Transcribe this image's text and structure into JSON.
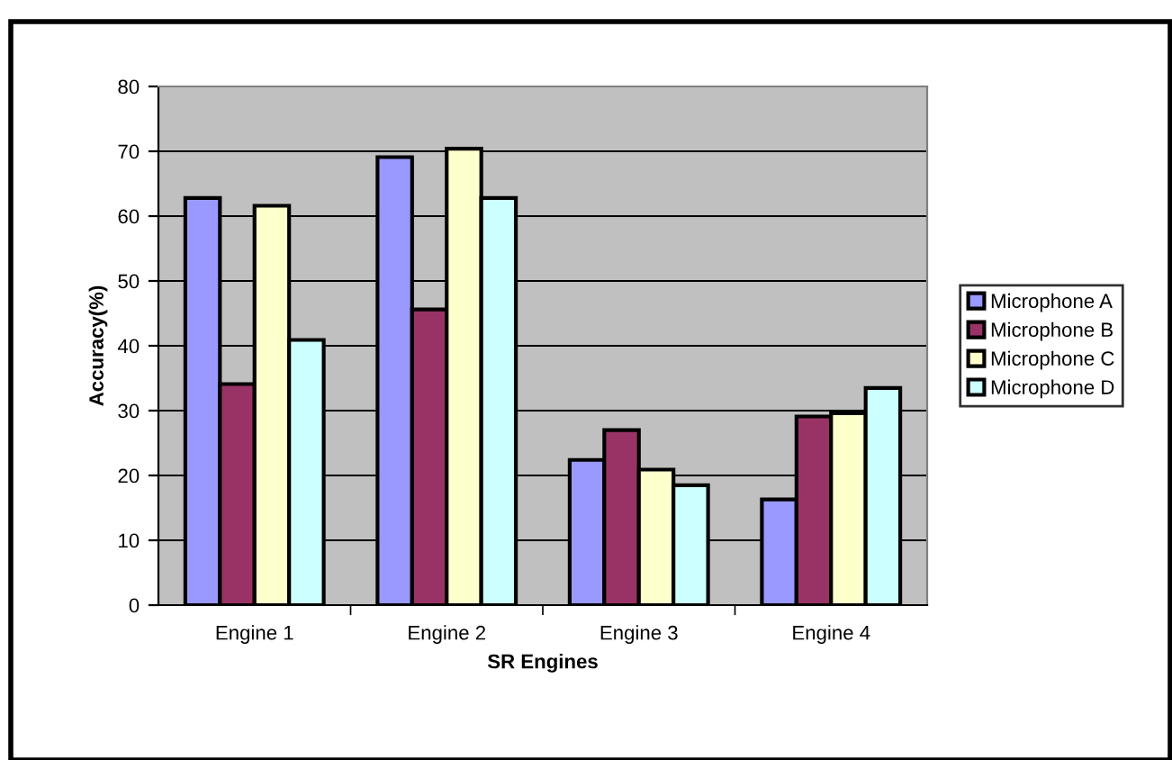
{
  "chart_data": {
    "type": "bar",
    "xlabel": "SR Engines",
    "ylabel": "Accuracy(%)",
    "categories": [
      "Engine 1",
      "Engine 2",
      "Engine 3",
      "Engine 4"
    ],
    "series": [
      {
        "name": "Microphone A",
        "color": "#9999ff",
        "values": [
          62.8,
          69.1,
          22.4,
          16.3
        ]
      },
      {
        "name": "Microphone B",
        "color": "#993366",
        "values": [
          34.1,
          45.6,
          27.0,
          29.1
        ]
      },
      {
        "name": "Microphone C",
        "color": "#ffffcc",
        "values": [
          61.6,
          70.4,
          20.9,
          29.6
        ]
      },
      {
        "name": "Microphone D",
        "color": "#ccffff",
        "values": [
          40.9,
          62.8,
          18.5,
          33.5
        ]
      }
    ],
    "ylim": [
      0,
      80
    ],
    "yticks": [
      0,
      10,
      20,
      30,
      40,
      50,
      60,
      70,
      80
    ],
    "grid": "y",
    "legend": "right"
  }
}
